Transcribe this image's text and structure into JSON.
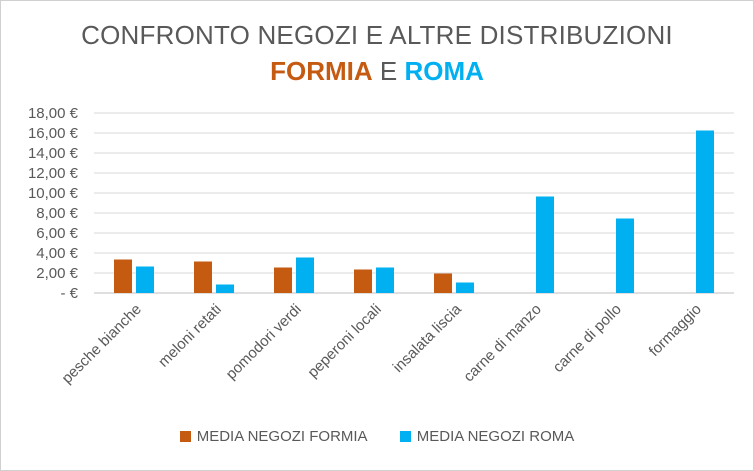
{
  "chart_data": {
    "type": "bar",
    "title_line1": "CONFRONTO NEGOZI E ALTRE DISTRIBUZIONI",
    "title_line2": {
      "part1": "FORMIA",
      "connector": "E",
      "part2": "ROMA"
    },
    "categories": [
      "pesche bianche",
      "meloni retati",
      "pomodori verdi",
      "peperoni locali",
      "insalata liscia",
      "carne di manzo",
      "carne di pollo",
      "formaggio"
    ],
    "series": [
      {
        "name": "MEDIA NEGOZI FORMIA",
        "color": "#C55A11",
        "values": [
          3.35,
          3.15,
          2.55,
          2.35,
          1.95,
          null,
          null,
          null
        ]
      },
      {
        "name": "MEDIA NEGOZI ROMA",
        "color": "#00B0F0",
        "values": [
          2.65,
          0.85,
          3.55,
          2.55,
          1.05,
          9.65,
          7.45,
          16.25
        ]
      }
    ],
    "ylim": [
      0,
      18
    ],
    "yticks": [
      0,
      2,
      4,
      6,
      8,
      10,
      12,
      14,
      16,
      18
    ],
    "ytick_labels": [
      "-  €",
      "2,00 €",
      "4,00 €",
      "6,00 €",
      "8,00 €",
      "10,00 €",
      "12,00 €",
      "14,00 €",
      "16,00 €",
      "18,00 €"
    ],
    "grid": true,
    "legend_position": "bottom"
  }
}
